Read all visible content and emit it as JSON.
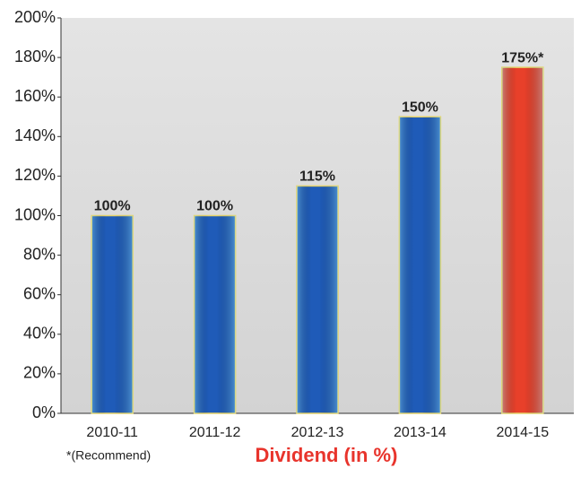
{
  "chart_data": {
    "type": "bar",
    "title": "Dividend (in %)",
    "footnote": "*(Recommend)",
    "categories": [
      "2010-11",
      "2011-12",
      "2012-13",
      "2013-14",
      "2014-15"
    ],
    "values": [
      100,
      100,
      115,
      150,
      175
    ],
    "value_labels": [
      "100%",
      "100%",
      "115%",
      "150%",
      "175%*"
    ],
    "colors": [
      "#1f5bb8",
      "#1f5bb8",
      "#1f5bb8",
      "#1f5bb8",
      "#e8402a"
    ],
    "ylim": [
      0,
      200
    ],
    "yticks": [
      {
        "value": 0,
        "label": "0%"
      },
      {
        "value": 20,
        "label": "20%"
      },
      {
        "value": 40,
        "label": "40%"
      },
      {
        "value": 60,
        "label": "60%"
      },
      {
        "value": 80,
        "label": "80%"
      },
      {
        "value": 100,
        "label": "100%"
      },
      {
        "value": 120,
        "label": "120%"
      },
      {
        "value": 140,
        "label": "140%"
      },
      {
        "value": 160,
        "label": "160%"
      },
      {
        "value": 180,
        "label": "180%"
      },
      {
        "value": 200,
        "label": "200%"
      }
    ],
    "grid": false
  }
}
